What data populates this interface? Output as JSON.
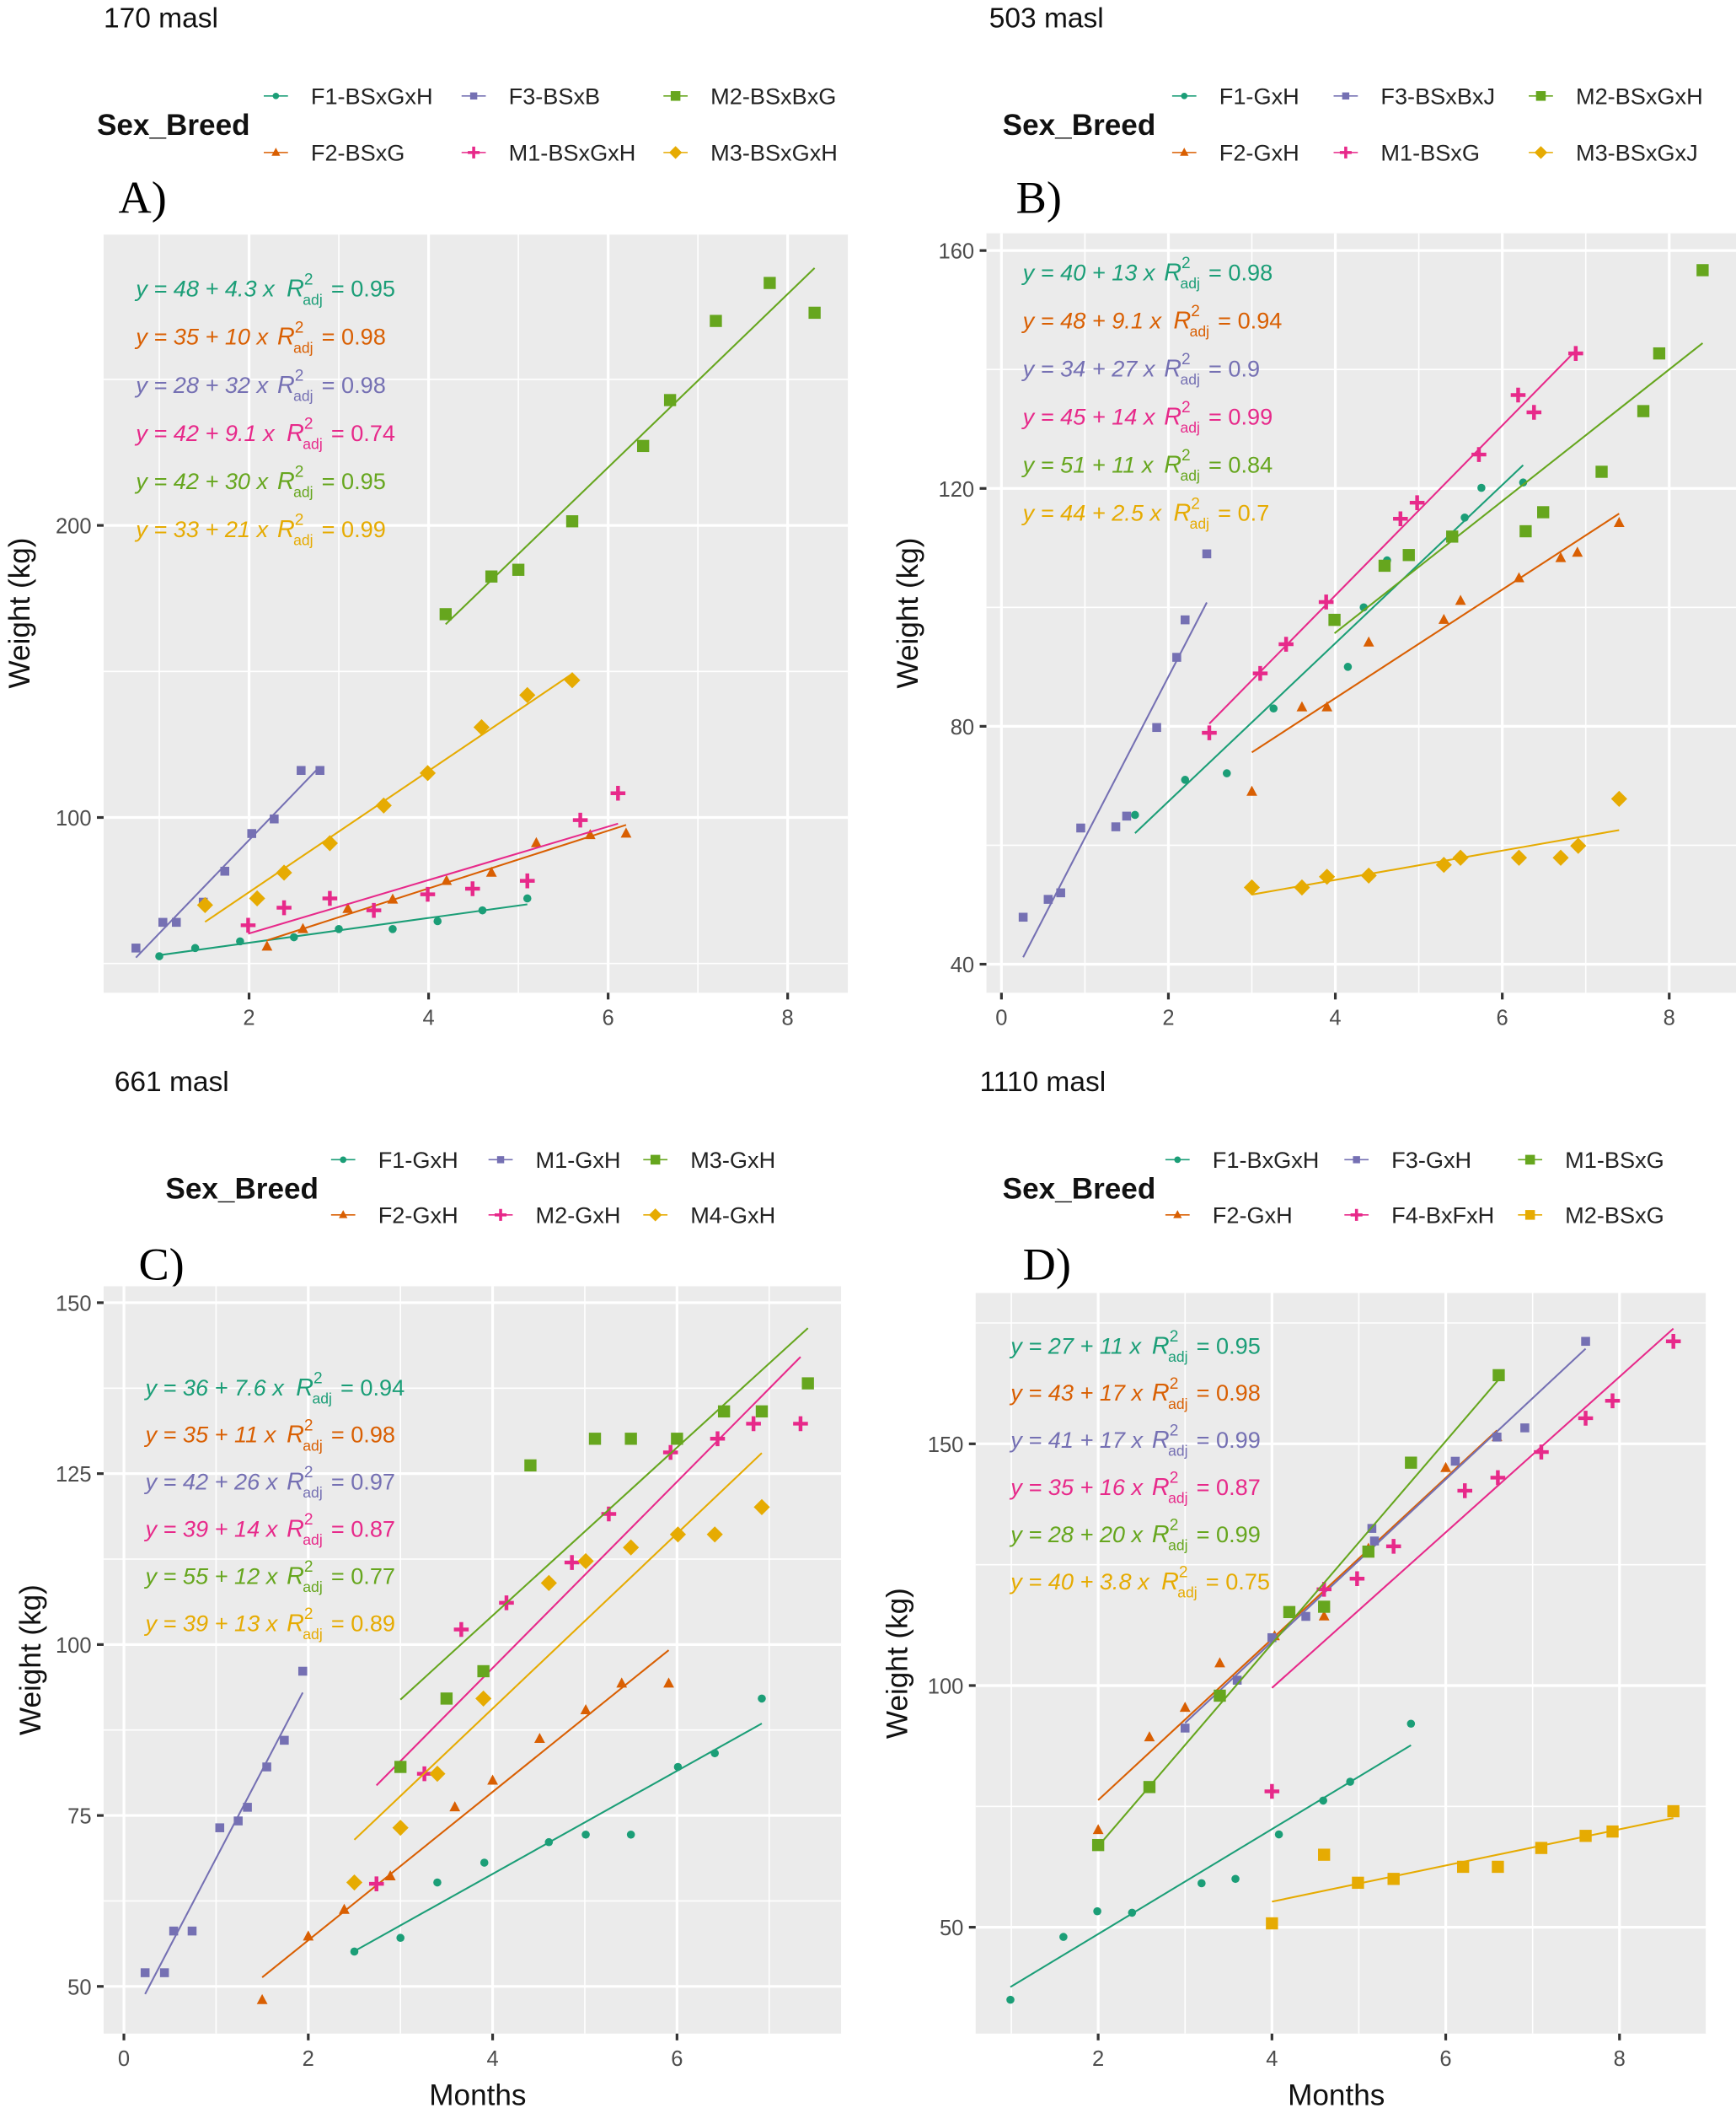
{
  "fit_label": {
    "symbol": "R",
    "sup": "2",
    "sub": "adj"
  },
  "chart_data": [
    {
      "type": "scatter",
      "panel_label": "A)",
      "title": "170 masl",
      "legend_title": "Sex_Breed",
      "legend_position": "top",
      "xlabel": "",
      "ylabel": "Weight (kg)",
      "xlim": [
        0.38,
        8.67
      ],
      "ylim": [
        40,
        300
      ],
      "xticks": [
        2,
        4,
        6,
        8
      ],
      "yticks": [
        100,
        200
      ],
      "grid": true,
      "series": [
        {
          "name": "F1-BSxGxH",
          "color": "#1b9e77",
          "shape": "circle",
          "x": [
            1.0,
            1.4,
            1.9,
            2.5,
            3.0,
            3.6,
            4.1,
            4.6,
            5.1
          ],
          "y": [
            52.5,
            55.3,
            57.6,
            59,
            61.8,
            61.8,
            64.5,
            68.2,
            72.3
          ],
          "fit": {
            "equation": "y = 48 + 4.3 x",
            "r2_adj": "0.95"
          }
        },
        {
          "name": "F2-BSxG",
          "color": "#d95f02",
          "shape": "triangle",
          "x": [
            2.2,
            2.6,
            3.1,
            3.6,
            4.2,
            4.7,
            5.2,
            5.8,
            6.2
          ],
          "y": [
            55.8,
            61.8,
            68.7,
            71.9,
            78.3,
            81.1,
            91.2,
            94,
            94.5
          ],
          "fit": {
            "equation": "y = 35 + 10 x",
            "r2_adj": "0.98"
          }
        },
        {
          "name": "F3-BSxB",
          "color": "#7570b3",
          "shape": "square",
          "x": [
            0.74,
            1.04,
            1.19,
            1.49,
            1.73,
            2.03,
            2.28,
            2.58,
            2.79
          ],
          "y": [
            55.3,
            64.1,
            64.1,
            71,
            81.6,
            94.5,
            99.5,
            116.1,
            116.1
          ],
          "fit": {
            "equation": "y = 28 + 32 x",
            "r2_adj": "0.98"
          }
        },
        {
          "name": "M1-BSxGxH",
          "color": "#e7298a",
          "shape": "plus",
          "x": [
            1.99,
            2.39,
            2.9,
            3.39,
            3.99,
            4.49,
            5.1,
            5.69,
            6.11
          ],
          "y": [
            63.1,
            69.1,
            72.3,
            68.2,
            73.7,
            75.6,
            78.3,
            99.1,
            108.3
          ],
          "fit": {
            "equation": "y = 42 + 9.1 x",
            "r2_adj": "0.74"
          }
        },
        {
          "name": "M2-BSxBxG",
          "color": "#66a61e",
          "shape": "bigsquare",
          "x": [
            4.19,
            4.7,
            5.0,
            5.6,
            6.39,
            6.69,
            7.2,
            7.8,
            8.3
          ],
          "y": [
            169.6,
            182.5,
            184.8,
            201.4,
            227.2,
            242.9,
            270,
            283,
            272.8
          ],
          "fit": {
            "equation": "y = 42 + 30 x",
            "r2_adj": "0.95"
          }
        },
        {
          "name": "M3-BSxGxH",
          "color": "#e6ab02",
          "shape": "diamond",
          "x": [
            1.51,
            2.09,
            2.39,
            2.9,
            3.5,
            3.99,
            4.59,
            5.1,
            5.6
          ],
          "y": [
            70,
            72.3,
            81.1,
            91.2,
            104.1,
            115.2,
            130.9,
            141.9,
            147
          ],
          "fit": {
            "equation": "y = 33 + 21 x",
            "r2_adj": "0.99"
          }
        }
      ]
    },
    {
      "type": "scatter",
      "panel_label": "B)",
      "title": "503 masl",
      "legend_title": "Sex_Breed",
      "legend_position": "top",
      "xlabel": "",
      "ylabel": "Weight (kg)",
      "xlim": [
        -0.18,
        8.8
      ],
      "ylim": [
        35.2,
        162.9
      ],
      "xticks": [
        0,
        2,
        4,
        6,
        8
      ],
      "yticks": [
        40,
        80,
        120,
        160
      ],
      "grid": true,
      "series": [
        {
          "name": "F1-GxH",
          "color": "#1b9e77",
          "shape": "circle",
          "x": [
            1.6,
            2.2,
            2.7,
            3.26,
            4.15,
            4.34,
            4.62,
            5.55,
            5.75,
            6.25
          ],
          "y": [
            65.1,
            71,
            72.1,
            83,
            90,
            100,
            107.9,
            115.1,
            120.1,
            121
          ],
          "fit": {
            "equation": "y = 40 + 13 x",
            "r2_adj": "0.98"
          }
        },
        {
          "name": "F2-GxH",
          "color": "#d95f02",
          "shape": "triangle",
          "x": [
            3.0,
            3.6,
            3.9,
            4.4,
            5.3,
            5.5,
            6.2,
            6.7,
            6.9,
            7.4
          ],
          "y": [
            69,
            83.2,
            83.2,
            94.1,
            97.9,
            101.1,
            104.9,
            108.3,
            109.2,
            114.2
          ],
          "fit": {
            "equation": "y = 48 + 9.1 x",
            "r2_adj": "0.94"
          }
        },
        {
          "name": "F3-BSxBxJ",
          "color": "#7570b3",
          "shape": "square",
          "x": [
            0.26,
            0.56,
            0.71,
            0.95,
            1.37,
            1.5,
            1.86,
            2.1,
            2.2,
            2.46
          ],
          "y": [
            47.9,
            50.9,
            52,
            62.9,
            63.1,
            64.9,
            79.8,
            91.6,
            97.9,
            109
          ],
          "fit": {
            "equation": "y = 34 + 27 x",
            "r2_adj": "0.9"
          }
        },
        {
          "name": "M1-BSxG",
          "color": "#e7298a",
          "shape": "plus",
          "x": [
            2.49,
            3.1,
            3.41,
            3.89,
            4.78,
            4.98,
            5.72,
            6.19,
            6.38,
            6.88
          ],
          "y": [
            78.9,
            88.9,
            93.8,
            100.9,
            114.9,
            117.6,
            125.7,
            135.7,
            132.8,
            142.7
          ],
          "fit": {
            "equation": "y = 45 + 14 x",
            "r2_adj": "0.99"
          }
        },
        {
          "name": "M2-BSxGxH",
          "color": "#66a61e",
          "shape": "bigsquare",
          "x": [
            3.99,
            4.59,
            4.88,
            5.4,
            6.28,
            6.49,
            7.19,
            7.69,
            7.88,
            8.4
          ],
          "y": [
            97.9,
            107,
            108.8,
            111.9,
            112.8,
            116,
            122.8,
            133,
            142.7,
            156.7
          ],
          "fit": {
            "equation": "y = 51 + 11 x",
            "r2_adj": "0.84"
          }
        },
        {
          "name": "M3-BSxGxJ",
          "color": "#e6ab02",
          "shape": "diamond",
          "x": [
            3.0,
            3.6,
            3.9,
            4.4,
            5.3,
            5.5,
            6.2,
            6.7,
            6.91,
            7.4
          ],
          "y": [
            52.9,
            52.9,
            54.7,
            54.9,
            56.7,
            57.9,
            57.9,
            57.9,
            59.9,
            67.8
          ],
          "fit": {
            "equation": "y = 44 + 2.5 x",
            "r2_adj": "0.7"
          }
        }
      ]
    },
    {
      "type": "scatter",
      "panel_label": "C)",
      "title": "661 masl",
      "legend_title": "Sex_Breed",
      "legend_position": "top",
      "xlabel": "Months",
      "ylabel": "Weight (kg)",
      "xlim": [
        -0.22,
        7.78
      ],
      "ylim": [
        43.1,
        152.4
      ],
      "xticks": [
        0,
        2,
        4,
        6
      ],
      "yticks": [
        50,
        75,
        100,
        125,
        150
      ],
      "grid": true,
      "series": [
        {
          "name": "F1-GxH",
          "color": "#1b9e77",
          "shape": "circle",
          "x": [
            2.5,
            3.0,
            3.4,
            3.91,
            4.61,
            5.01,
            5.5,
            6.01,
            6.41,
            6.92
          ],
          "y": [
            55.1,
            57.1,
            65.2,
            68.1,
            71.1,
            72.2,
            72.2,
            82.1,
            84.1,
            92.1
          ],
          "fit": {
            "equation": "y = 36 + 7.6 x",
            "r2_adj": "0.94"
          }
        },
        {
          "name": "F2-GxH",
          "color": "#d95f02",
          "shape": "triangle",
          "x": [
            1.5,
            2.0,
            2.39,
            2.89,
            3.59,
            4.0,
            4.51,
            5.01,
            5.4,
            5.91
          ],
          "y": [
            48,
            57.3,
            61.2,
            66.1,
            76.2,
            80.1,
            86.2,
            90.4,
            94.3,
            94.3
          ],
          "fit": {
            "equation": "y = 35 + 11 x",
            "r2_adj": "0.98"
          }
        },
        {
          "name": "M1-GxH",
          "color": "#7570b3",
          "shape": "square",
          "x": [
            0.23,
            0.44,
            0.54,
            0.74,
            1.04,
            1.24,
            1.34,
            1.55,
            1.74,
            1.94
          ],
          "y": [
            52,
            52,
            58.1,
            58.1,
            73.2,
            74.2,
            76.2,
            82.1,
            86,
            96.1
          ],
          "fit": {
            "equation": "y = 42 + 26 x",
            "r2_adj": "0.97"
          }
        },
        {
          "name": "M2-GxH",
          "color": "#e7298a",
          "shape": "plus",
          "x": [
            2.74,
            3.26,
            3.66,
            4.15,
            4.86,
            5.26,
            5.93,
            6.44,
            6.83,
            7.34
          ],
          "y": [
            65,
            81.1,
            102.2,
            106.1,
            112,
            119.1,
            128.1,
            130.1,
            132.3,
            132.3
          ],
          "fit": {
            "equation": "y = 39 + 14 x",
            "r2_adj": "0.87"
          }
        },
        {
          "name": "M3-GxH",
          "color": "#66a61e",
          "shape": "bigsquare",
          "x": [
            3.0,
            3.5,
            3.9,
            4.41,
            5.11,
            5.5,
            6.0,
            6.51,
            6.92,
            7.42
          ],
          "y": [
            82.1,
            92.1,
            96.1,
            126.2,
            130.1,
            130.1,
            130.1,
            134.1,
            134.1,
            138.2
          ],
          "fit": {
            "equation": "y = 55 + 12 x",
            "r2_adj": "0.77"
          }
        },
        {
          "name": "M4-GxH",
          "color": "#e6ab02",
          "shape": "diamond",
          "x": [
            2.5,
            3.0,
            3.4,
            3.9,
            4.61,
            5.01,
            5.5,
            6.01,
            6.41,
            6.92
          ],
          "y": [
            65.2,
            73.2,
            81.1,
            92.1,
            109,
            112.2,
            114.2,
            116.1,
            116.1,
            120.1
          ],
          "fit": {
            "equation": "y = 39 + 13 x",
            "r2_adj": "0.89"
          }
        }
      ]
    },
    {
      "type": "scatter",
      "panel_label": "D)",
      "title": "1110 masl",
      "legend_title": "Sex_Breed",
      "legend_position": "top",
      "xlabel": "Months",
      "ylabel": "Weight (kg)",
      "xlim": [
        0.59,
        9.0
      ],
      "ylim": [
        28,
        181.2
      ],
      "xticks": [
        2,
        4,
        6,
        8
      ],
      "yticks": [
        50,
        100,
        150
      ],
      "grid": true,
      "series": [
        {
          "name": "F1-BxGxH",
          "color": "#1b9e77",
          "shape": "circle",
          "x": [
            0.99,
            1.6,
            1.99,
            2.39,
            3.19,
            3.58,
            4.08,
            4.59,
            4.9,
            5.6
          ],
          "y": [
            35,
            48,
            53.3,
            53,
            59.1,
            60,
            69.2,
            76.2,
            80.1,
            92.1
          ],
          "fit": {
            "equation": "y = 27 + 11 x",
            "r2_adj": "0.95"
          }
        },
        {
          "name": "F2-GxH",
          "color": "#d95f02",
          "shape": "triangle",
          "x": [
            2.0,
            2.59,
            3.0,
            3.4,
            4.03,
            4.6,
            5.11,
            6.0,
            6.59
          ],
          "y": [
            70.1,
            89.3,
            95.4,
            104.6,
            110.2,
            114.3,
            128.3,
            145,
            151.4
          ],
          "fit": {
            "equation": "y = 43 + 17 x",
            "r2_adj": "0.98"
          }
        },
        {
          "name": "F3-GxH",
          "color": "#7570b3",
          "shape": "square",
          "x": [
            3.0,
            3.6,
            4.0,
            4.39,
            5.15,
            5.18,
            6.11,
            6.59,
            6.91,
            7.61
          ],
          "y": [
            91.2,
            101.1,
            109.9,
            114.3,
            132.5,
            129.9,
            146.4,
            151.4,
            153.3,
            171.2
          ],
          "fit": {
            "equation": "y = 41 + 17 x",
            "r2_adj": "0.99"
          }
        },
        {
          "name": "F4-BxFxH",
          "color": "#e7298a",
          "shape": "plus",
          "x": [
            4.0,
            4.6,
            4.98,
            5.4,
            6.22,
            6.6,
            7.1,
            7.61,
            7.92,
            8.62
          ],
          "y": [
            78.1,
            119.9,
            122.1,
            128.8,
            140.3,
            143,
            148.3,
            155.3,
            158.9,
            171.2
          ],
          "fit": {
            "equation": "y = 35 + 16 x",
            "r2_adj": "0.87"
          }
        },
        {
          "name": "M1-BSxG",
          "color": "#66a61e",
          "shape": "bigsquare",
          "x": [
            2.0,
            2.59,
            3.4,
            4.2,
            4.6,
            5.11,
            5.6,
            6.61
          ],
          "y": [
            67,
            79,
            97.9,
            115.2,
            116.3,
            127.7,
            146.1,
            164.2
          ],
          "fit": {
            "equation": "y = 28 + 20 x",
            "r2_adj": "0.99"
          }
        },
        {
          "name": "M2-BSxG",
          "color": "#e6ab02",
          "shape": "bigsquare",
          "x": [
            4.0,
            4.6,
            4.99,
            5.4,
            6.2,
            6.6,
            7.1,
            7.61,
            7.92,
            8.62
          ],
          "y": [
            50.8,
            65,
            59.2,
            60,
            62.5,
            62.5,
            66.4,
            68.9,
            69.8,
            74
          ],
          "fit": {
            "equation": "y = 40 + 3.8 x",
            "r2_adj": "0.75"
          }
        }
      ]
    }
  ]
}
